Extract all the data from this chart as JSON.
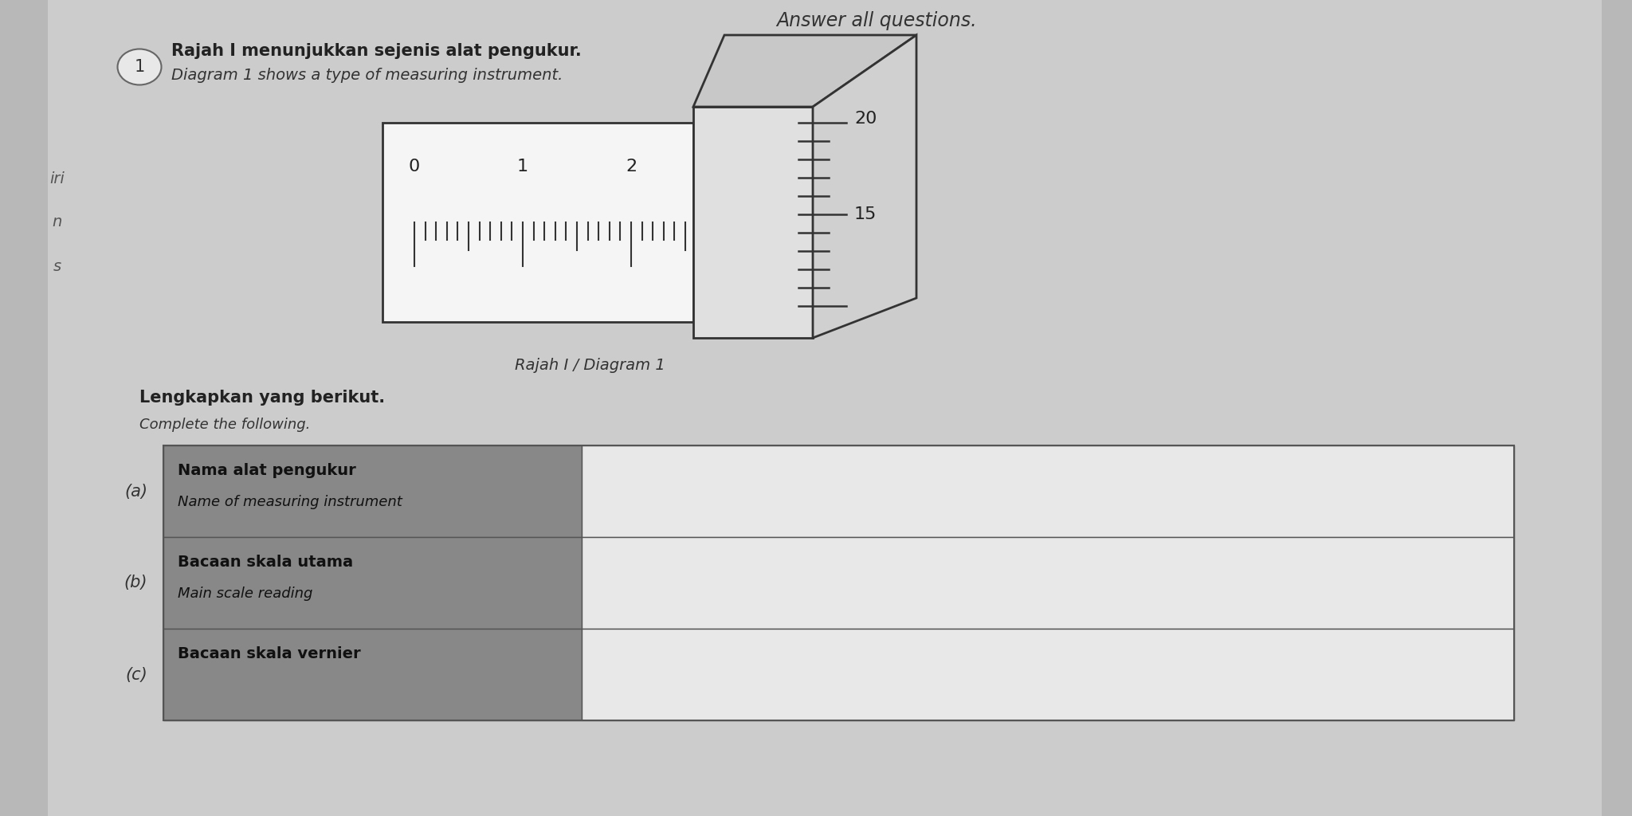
{
  "bg_color": "#b8b8b8",
  "page_bg": "#d0d0d0",
  "title_top": "Answer all questions.",
  "question_num": "1",
  "question_text_malay": "Rajah I menunjukkan sejenis alat pengukur.",
  "question_text_english": "Diagram 1 shows a type of measuring instrument.",
  "diagram_label": "Rajah I / Diagram 1",
  "left_labels": [
    "iri",
    "n",
    "s"
  ],
  "main_scale_labels": [
    "0",
    "1",
    "2"
  ],
  "thimble_scale_label_20": "20",
  "thimble_scale_label_15": "15",
  "complete_text_malay": "Lengkapkan yang berikut.",
  "complete_text_english": "Complete the following.",
  "table_rows": [
    {
      "label_letter": "(a)",
      "label_malay": "Nama alat pengukur",
      "label_english": "Name of measuring instrument"
    },
    {
      "label_letter": "(b)",
      "label_malay": "Bacaan skala utama",
      "label_english": "Main scale reading"
    },
    {
      "label_letter": "(c)",
      "label_malay": "Bacaan skala vernier",
      "label_english": ""
    }
  ],
  "label_cell_color": "#888888",
  "answer_cell_color": "#e8e8e8",
  "sleeve_face_color": "#f5f5f5",
  "thimble_face_color": "#e0e0e0",
  "thimble_top_color": "#c8c8c8",
  "thimble_right_color": "#d0d0d0"
}
